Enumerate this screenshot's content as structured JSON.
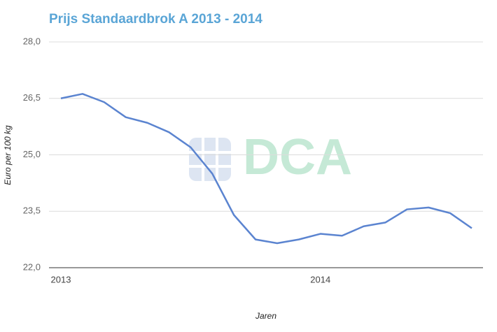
{
  "chart_data": {
    "type": "line",
    "title": "Prijs Standaardbrok A 2013 - 2014",
    "y_label": "Euro per 100 kg",
    "x_label": "Jaren",
    "watermark": "DCA",
    "categories": [
      "2013",
      null,
      null,
      null,
      null,
      null,
      null,
      null,
      null,
      null,
      null,
      null,
      "2014",
      null,
      null,
      null,
      null,
      null,
      null,
      null
    ],
    "series": [
      {
        "name": "Standaardbrok A",
        "color": "#5b84d0",
        "values": [
          26.5,
          26.62,
          26.4,
          26.0,
          25.85,
          25.6,
          25.2,
          24.5,
          23.4,
          22.75,
          22.65,
          22.75,
          22.9,
          22.85,
          23.1,
          23.2,
          23.55,
          23.6,
          23.45,
          23.05
        ]
      }
    ],
    "ylim": [
      22,
      28
    ],
    "yticks": [
      {
        "value": 22,
        "label": "22,0"
      },
      {
        "value": 23.5,
        "label": "23,5"
      },
      {
        "value": 25,
        "label": "25,0"
      },
      {
        "value": 26.5,
        "label": "26,5"
      },
      {
        "value": 28,
        "label": "28,0"
      }
    ],
    "grid": true
  }
}
